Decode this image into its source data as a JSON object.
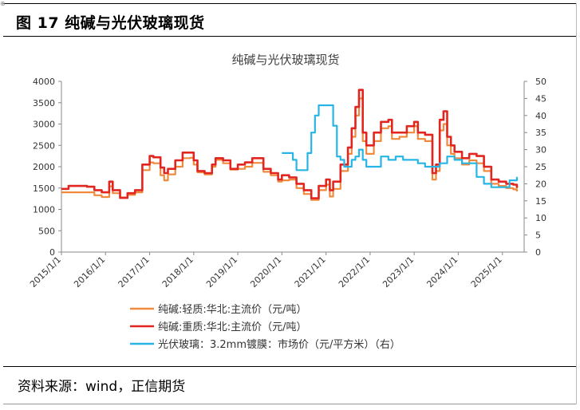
{
  "figure": {
    "corner_mark": "⊕",
    "title": "图 17  纯碱与光伏玻璃现货",
    "source": "资料来源：wind，正信期货"
  },
  "chart_data": {
    "type": "line",
    "title": "纯碱与光伏玻璃现货",
    "y_left": {
      "min": 0,
      "max": 4000,
      "ticks": [
        0,
        500,
        1000,
        1500,
        2000,
        2500,
        3000,
        3500,
        4000
      ]
    },
    "y_right": {
      "min": 0,
      "max": 50,
      "ticks": [
        0,
        5,
        10,
        15,
        20,
        25,
        30,
        35,
        40,
        45,
        50
      ]
    },
    "x_range": [
      "2015-01-01",
      "2025-06-30"
    ],
    "x_ticks": [
      "2015/1/1",
      "2016/1/1",
      "2017/1/1",
      "2018/1/1",
      "2019/1/1",
      "2020/1/1",
      "2021/1/1",
      "2022/1/1",
      "2023/1/1",
      "2024/1/1",
      "2025/1/1"
    ],
    "legend_position": "bottom",
    "grid": false,
    "series": [
      {
        "name": "纯碱:轻质:华北:主流价（元/吨）",
        "axis": "left",
        "color": "#f08a3c",
        "points": [
          [
            "2015-01-01",
            1400
          ],
          [
            "2015-06-01",
            1400
          ],
          [
            "2015-10-01",
            1330
          ],
          [
            "2015-12-01",
            1290
          ],
          [
            "2016-01-01",
            1290
          ],
          [
            "2016-02-01",
            1540
          ],
          [
            "2016-03-01",
            1380
          ],
          [
            "2016-05-01",
            1280
          ],
          [
            "2016-07-01",
            1340
          ],
          [
            "2016-09-01",
            1400
          ],
          [
            "2016-11-01",
            1920
          ],
          [
            "2017-01-01",
            2100
          ],
          [
            "2017-02-01",
            2080
          ],
          [
            "2017-04-01",
            1800
          ],
          [
            "2017-05-01",
            1680
          ],
          [
            "2017-06-01",
            1820
          ],
          [
            "2017-08-01",
            2000
          ],
          [
            "2017-10-01",
            2200
          ],
          [
            "2017-12-01",
            2210
          ],
          [
            "2018-01-01",
            2050
          ],
          [
            "2018-02-01",
            1870
          ],
          [
            "2018-04-01",
            1820
          ],
          [
            "2018-06-01",
            2000
          ],
          [
            "2018-07-01",
            2160
          ],
          [
            "2018-09-01",
            2080
          ],
          [
            "2018-11-01",
            1930
          ],
          [
            "2019-01-01",
            1950
          ],
          [
            "2019-03-01",
            2000
          ],
          [
            "2019-05-01",
            2090
          ],
          [
            "2019-07-01",
            2090
          ],
          [
            "2019-08-01",
            1880
          ],
          [
            "2019-10-01",
            1800
          ],
          [
            "2019-12-01",
            1650
          ],
          [
            "2020-01-01",
            1680
          ],
          [
            "2020-03-01",
            1700
          ],
          [
            "2020-05-01",
            1500
          ],
          [
            "2020-07-01",
            1360
          ],
          [
            "2020-09-01",
            1220
          ],
          [
            "2020-11-01",
            1450
          ],
          [
            "2021-01-01",
            1580
          ],
          [
            "2021-02-01",
            1300
          ],
          [
            "2021-03-01",
            1480
          ],
          [
            "2021-05-01",
            1900
          ],
          [
            "2021-07-01",
            2300
          ],
          [
            "2021-08-01",
            2700
          ],
          [
            "2021-09-01",
            3200
          ],
          [
            "2021-10-01",
            3600
          ],
          [
            "2021-11-01",
            2600
          ],
          [
            "2021-12-01",
            2300
          ],
          [
            "2022-02-01",
            2600
          ],
          [
            "2022-04-01",
            2900
          ],
          [
            "2022-06-01",
            2950
          ],
          [
            "2022-07-01",
            2650
          ],
          [
            "2022-09-01",
            2700
          ],
          [
            "2022-11-01",
            2800
          ],
          [
            "2023-01-01",
            2950
          ],
          [
            "2023-02-01",
            2650
          ],
          [
            "2023-04-01",
            2600
          ],
          [
            "2023-06-01",
            1700
          ],
          [
            "2023-07-01",
            1900
          ],
          [
            "2023-08-01",
            2850
          ],
          [
            "2023-09-01",
            3000
          ],
          [
            "2023-10-01",
            2500
          ],
          [
            "2023-11-01",
            2300
          ],
          [
            "2023-12-01",
            2200
          ],
          [
            "2024-02-01",
            2050
          ],
          [
            "2024-04-01",
            2150
          ],
          [
            "2024-06-01",
            2080
          ],
          [
            "2024-08-01",
            1900
          ],
          [
            "2024-10-01",
            1600
          ],
          [
            "2024-12-01",
            1550
          ],
          [
            "2025-02-01",
            1500
          ],
          [
            "2025-04-01",
            1470
          ],
          [
            "2025-05-01",
            1420
          ]
        ]
      },
      {
        "name": "纯碱:重质:华北:主流价（元/吨）",
        "axis": "left",
        "color": "#e2261f",
        "points": [
          [
            "2015-01-01",
            1480
          ],
          [
            "2015-03-01",
            1550
          ],
          [
            "2015-08-01",
            1530
          ],
          [
            "2015-10-01",
            1450
          ],
          [
            "2015-12-01",
            1400
          ],
          [
            "2016-01-01",
            1400
          ],
          [
            "2016-02-01",
            1650
          ],
          [
            "2016-03-01",
            1450
          ],
          [
            "2016-05-01",
            1270
          ],
          [
            "2016-07-01",
            1380
          ],
          [
            "2016-09-01",
            1450
          ],
          [
            "2016-11-01",
            2050
          ],
          [
            "2017-01-01",
            2250
          ],
          [
            "2017-02-01",
            2220
          ],
          [
            "2017-04-01",
            1980
          ],
          [
            "2017-05-01",
            1850
          ],
          [
            "2017-06-01",
            1950
          ],
          [
            "2017-08-01",
            2150
          ],
          [
            "2017-10-01",
            2330
          ],
          [
            "2017-12-01",
            2330
          ],
          [
            "2018-01-01",
            2150
          ],
          [
            "2018-02-01",
            1900
          ],
          [
            "2018-04-01",
            1850
          ],
          [
            "2018-06-01",
            2050
          ],
          [
            "2018-07-01",
            2200
          ],
          [
            "2018-09-01",
            2150
          ],
          [
            "2018-11-01",
            1950
          ],
          [
            "2019-01-01",
            2050
          ],
          [
            "2019-03-01",
            2100
          ],
          [
            "2019-05-01",
            2200
          ],
          [
            "2019-07-01",
            2200
          ],
          [
            "2019-08-01",
            1950
          ],
          [
            "2019-10-01",
            1850
          ],
          [
            "2019-12-01",
            1700
          ],
          [
            "2020-01-01",
            1800
          ],
          [
            "2020-03-01",
            1750
          ],
          [
            "2020-05-01",
            1600
          ],
          [
            "2020-07-01",
            1450
          ],
          [
            "2020-09-01",
            1260
          ],
          [
            "2020-11-01",
            1550
          ],
          [
            "2021-01-01",
            1700
          ],
          [
            "2021-02-01",
            1450
          ],
          [
            "2021-03-01",
            1650
          ],
          [
            "2021-05-01",
            2050
          ],
          [
            "2021-07-01",
            2450
          ],
          [
            "2021-08-01",
            2900
          ],
          [
            "2021-09-01",
            3400
          ],
          [
            "2021-10-01",
            3800
          ],
          [
            "2021-11-01",
            2800
          ],
          [
            "2021-12-01",
            2500
          ],
          [
            "2022-02-01",
            2800
          ],
          [
            "2022-04-01",
            3050
          ],
          [
            "2022-06-01",
            3100
          ],
          [
            "2022-07-01",
            2800
          ],
          [
            "2022-09-01",
            2800
          ],
          [
            "2022-11-01",
            2950
          ],
          [
            "2023-01-01",
            3050
          ],
          [
            "2023-02-01",
            2800
          ],
          [
            "2023-04-01",
            2750
          ],
          [
            "2023-06-01",
            1850
          ],
          [
            "2023-07-01",
            2050
          ],
          [
            "2023-08-01",
            3100
          ],
          [
            "2023-09-01",
            3300
          ],
          [
            "2023-10-01",
            2700
          ],
          [
            "2023-11-01",
            2500
          ],
          [
            "2023-12-01",
            2350
          ],
          [
            "2024-02-01",
            2200
          ],
          [
            "2024-04-01",
            2300
          ],
          [
            "2024-06-01",
            2250
          ],
          [
            "2024-08-01",
            2000
          ],
          [
            "2024-10-01",
            1700
          ],
          [
            "2024-12-01",
            1650
          ],
          [
            "2025-02-01",
            1600
          ],
          [
            "2025-04-01",
            1580
          ],
          [
            "2025-05-01",
            1500
          ]
        ]
      },
      {
        "name": "光伏玻璃：3.2mm镀膜：市场价（元/平方米）（右）",
        "axis": "right",
        "color": "#27b5e5",
        "points": [
          [
            "2020-01-01",
            29
          ],
          [
            "2020-03-01",
            29
          ],
          [
            "2020-04-01",
            27
          ],
          [
            "2020-05-01",
            24
          ],
          [
            "2020-07-01",
            24
          ],
          [
            "2020-08-01",
            29
          ],
          [
            "2020-09-01",
            35
          ],
          [
            "2020-10-01",
            40
          ],
          [
            "2020-11-01",
            43
          ],
          [
            "2021-02-01",
            43
          ],
          [
            "2021-03-01",
            37
          ],
          [
            "2021-04-01",
            28
          ],
          [
            "2021-05-01",
            27
          ],
          [
            "2021-06-01",
            25
          ],
          [
            "2021-08-01",
            27
          ],
          [
            "2021-09-01",
            28
          ],
          [
            "2021-10-01",
            30
          ],
          [
            "2021-11-01",
            27
          ],
          [
            "2021-12-01",
            25
          ],
          [
            "2022-02-01",
            25
          ],
          [
            "2022-04-01",
            28
          ],
          [
            "2022-06-01",
            27
          ],
          [
            "2022-08-01",
            28
          ],
          [
            "2022-10-01",
            27
          ],
          [
            "2022-12-01",
            27
          ],
          [
            "2023-02-01",
            26
          ],
          [
            "2023-04-01",
            25
          ],
          [
            "2023-06-01",
            25
          ],
          [
            "2023-08-01",
            26
          ],
          [
            "2023-10-01",
            28
          ],
          [
            "2023-12-01",
            27
          ],
          [
            "2024-02-01",
            26
          ],
          [
            "2024-04-01",
            26
          ],
          [
            "2024-06-01",
            22
          ],
          [
            "2024-08-01",
            20
          ],
          [
            "2024-10-01",
            19
          ],
          [
            "2024-12-01",
            19
          ],
          [
            "2025-02-01",
            19
          ],
          [
            "2025-03-01",
            21
          ],
          [
            "2025-05-01",
            22
          ]
        ]
      }
    ]
  }
}
